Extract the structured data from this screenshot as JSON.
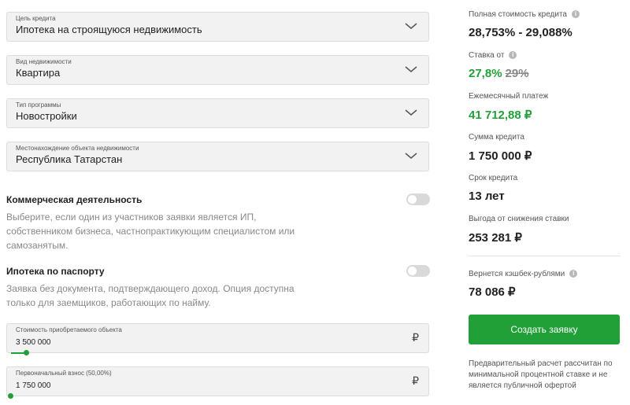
{
  "form": {
    "credit_purpose": {
      "label": "Цель кредита",
      "value": "Ипотека на строящуюся недвижимость"
    },
    "property_type": {
      "label": "Вид недвижимости",
      "value": "Квартира"
    },
    "program_type": {
      "label": "Тип программы",
      "value": "Новостройки"
    },
    "property_location": {
      "label": "Местонахождение объекта недвижимости",
      "value": "Республика Татарстан"
    }
  },
  "options": {
    "commercial": {
      "title": "Коммерческая деятельность",
      "description": "Выберите, если один из участников заявки является ИП, собственником бизнеса, частнопрактикующим специалистом или самозанятым.",
      "enabled": false
    },
    "passport": {
      "title": "Ипотека по паспорту",
      "description": "Заявка без документа, подтверждающего доход. Опция доступна только для заемщиков, работающих по найму.",
      "enabled": false
    }
  },
  "inputs": {
    "property_cost": {
      "label": "Стоимость приобретаемого объекта",
      "value": "3 500 000",
      "currency": "₽",
      "slider_fraction": 0.03
    },
    "down_payment": {
      "label": "Первоначальный взнос (50,00%)",
      "value": "1 750 000",
      "currency": "₽",
      "slider_fraction": 0.0
    }
  },
  "summary": {
    "full_cost": {
      "label": "Полная стоимость кредита",
      "value": "28,753% - 29,088%"
    },
    "rate": {
      "label": "Ставка от",
      "value": "27,8%",
      "old_value": "29%"
    },
    "monthly_payment": {
      "label": "Ежемесячный платеж",
      "value": "41 712,88 ₽"
    },
    "loan_amount": {
      "label": "Сумма кредита",
      "value": "1 750 000 ₽"
    },
    "term": {
      "label": "Срок кредита",
      "value": "13 лет"
    },
    "rate_benefit": {
      "label": "Выгода от снижения ставки",
      "value": "253 281 ₽"
    },
    "cashback": {
      "label": "Вернется кэшбек-рублями",
      "value": "78 086 ₽"
    },
    "submit_label": "Создать заявку",
    "disclaimer": "Предварительный расчет рассчитан по минимальной процентной ставке и не является публичной офертой",
    "info_glyph": "i"
  },
  "colors": {
    "accent": "#21a038",
    "field_bg": "#f2f2f2",
    "toggle_off": "#d9d9d9"
  }
}
